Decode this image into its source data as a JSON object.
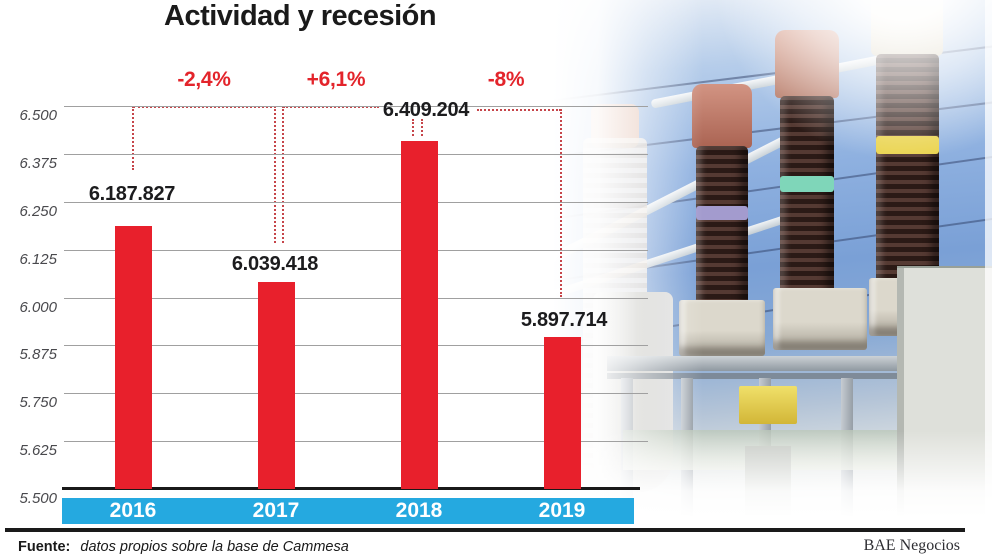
{
  "title": "Actividad y recesión",
  "source": {
    "label": "Fuente:",
    "text": "datos propios sobre la base de Cammesa"
  },
  "credit": "BAE Negocios",
  "chart_data": {
    "type": "bar",
    "title": "Actividad y recesión",
    "categories": [
      "2016",
      "2017",
      "2018",
      "2019"
    ],
    "values": [
      6187827,
      6039418,
      6409204,
      5897714
    ],
    "value_labels": [
      "6.187.827",
      "6.039.418",
      "6.409.204",
      "5.897.714"
    ],
    "annotations": [
      {
        "label": "-2,4%",
        "between": "2016-2017"
      },
      {
        "label": "+6,1%",
        "between": "2017-2018"
      },
      {
        "label": "-8%",
        "between": "2018-2019"
      }
    ],
    "ylim": [
      5500000,
      6500000
    ],
    "ytick_labels": [
      "6.500",
      "6.375",
      "6.250",
      "6.125",
      "6.000",
      "5.875",
      "5.750",
      "5.625",
      "5.500"
    ],
    "grid": true,
    "legend": false,
    "bar_color": "#e8202c",
    "annotation_color": "#e3242b",
    "axis_band_color": "#25a9e0"
  }
}
